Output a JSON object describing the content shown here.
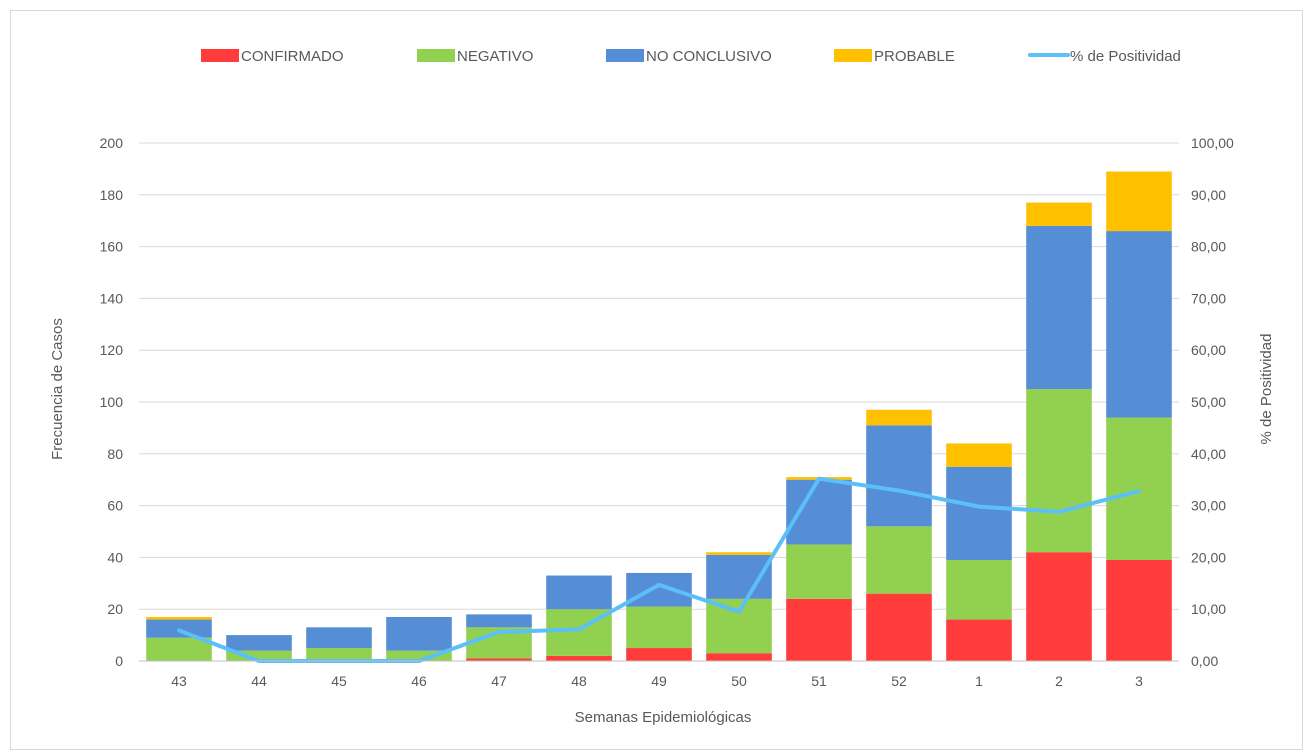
{
  "chart_data": {
    "type": "bar",
    "stacked": true,
    "xlabel": "Semanas Epidemiológicas",
    "ylabel": "Frecuencia de Casos",
    "y2label": "% de Positividad",
    "ylim": [
      0,
      200
    ],
    "y2lim": [
      0,
      100
    ],
    "yticks": [
      "0",
      "20",
      "40",
      "60",
      "80",
      "100",
      "120",
      "140",
      "160",
      "180",
      "200"
    ],
    "y2ticks": [
      "0,00",
      "10,00",
      "20,00",
      "30,00",
      "40,00",
      "50,00",
      "60,00",
      "70,00",
      "80,00",
      "90,00",
      "100,00"
    ],
    "grid": true,
    "legend_position": "top",
    "categories": [
      "43",
      "44",
      "45",
      "46",
      "47",
      "48",
      "49",
      "50",
      "51",
      "52",
      "1",
      "2",
      "3"
    ],
    "series": [
      {
        "name": "CONFIRMADO",
        "color": "#ff3b3b",
        "values": [
          0,
          0,
          0,
          0,
          1,
          2,
          5,
          3,
          24,
          26,
          16,
          42,
          39
        ]
      },
      {
        "name": "NEGATIVO",
        "color": "#92d050",
        "values": [
          9,
          4,
          5,
          4,
          12,
          18,
          16,
          21,
          21,
          26,
          23,
          63,
          55
        ]
      },
      {
        "name": "NO CONCLUSIVO",
        "color": "#558ed5",
        "values": [
          7,
          6,
          8,
          13,
          5,
          13,
          13,
          17,
          25,
          39,
          36,
          63,
          72
        ]
      },
      {
        "name": "PROBABLE",
        "color": "#ffc000",
        "values": [
          1,
          0,
          0,
          0,
          0,
          0,
          0,
          1,
          1,
          6,
          9,
          9,
          23
        ]
      }
    ],
    "line_series": {
      "name": "% de Positividad",
      "color": "#5bc0f8",
      "axis": "right",
      "values": [
        5.9,
        0,
        0,
        0,
        5.6,
        6.1,
        14.7,
        9.5,
        35.2,
        32.9,
        29.8,
        28.8,
        32.8
      ]
    }
  }
}
